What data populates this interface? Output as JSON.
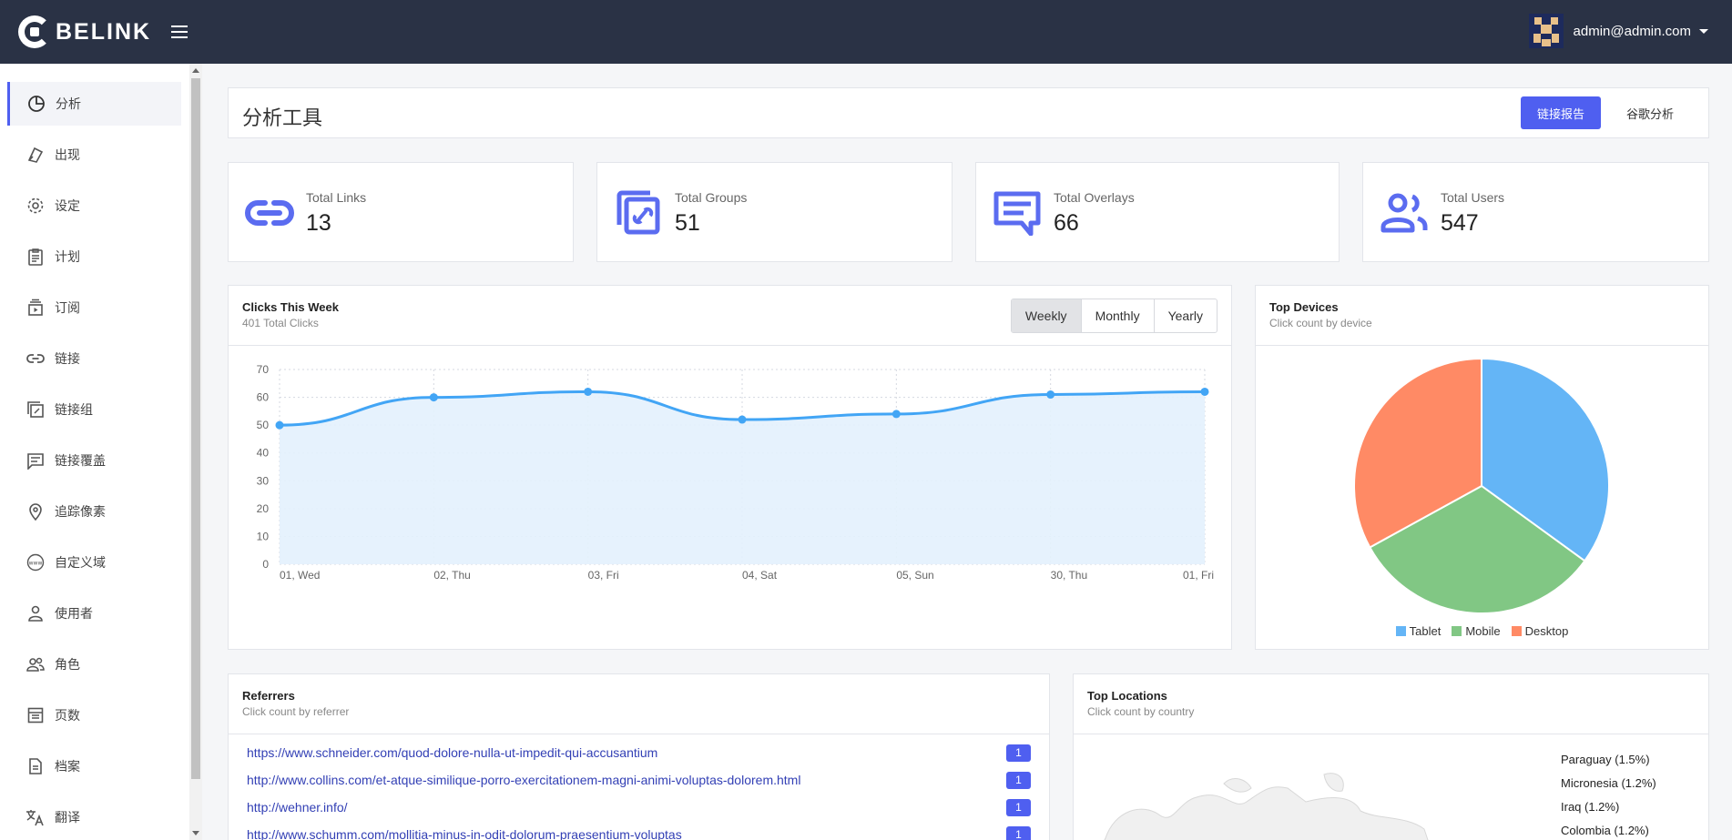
{
  "brand": {
    "name": "BELINK"
  },
  "user": {
    "email": "admin@admin.com"
  },
  "sidebar": {
    "items": [
      {
        "label": "分析",
        "icon": "pie-icon",
        "active": true
      },
      {
        "label": "出现",
        "icon": "appearance-icon"
      },
      {
        "label": "设定",
        "icon": "gear-icon"
      },
      {
        "label": "计划",
        "icon": "clipboard-icon"
      },
      {
        "label": "订阅",
        "icon": "subscription-icon"
      },
      {
        "label": "链接",
        "icon": "link-icon"
      },
      {
        "label": "链接组",
        "icon": "link-group-icon"
      },
      {
        "label": "链接覆盖",
        "icon": "overlay-icon"
      },
      {
        "label": "追踪像素",
        "icon": "location-pin-icon"
      },
      {
        "label": "自定义域",
        "icon": "www-icon"
      },
      {
        "label": "使用者",
        "icon": "user-icon"
      },
      {
        "label": "角色",
        "icon": "users-icon"
      },
      {
        "label": "页数",
        "icon": "pages-icon"
      },
      {
        "label": "档案",
        "icon": "document-icon"
      },
      {
        "label": "翻译",
        "icon": "translate-icon"
      }
    ]
  },
  "header": {
    "title": "分析工具",
    "primary_button": "链接报告",
    "secondary_button": "谷歌分析"
  },
  "stats": [
    {
      "label": "Total Links",
      "value": "13",
      "icon": "link-icon"
    },
    {
      "label": "Total Groups",
      "value": "51",
      "icon": "link-group-icon"
    },
    {
      "label": "Total Overlays",
      "value": "66",
      "icon": "overlay-icon"
    },
    {
      "label": "Total Users",
      "value": "547",
      "icon": "users-icon"
    }
  ],
  "clicks": {
    "title": "Clicks This Week",
    "subtitle": "401 Total Clicks",
    "tabs": [
      "Weekly",
      "Monthly",
      "Yearly"
    ],
    "active_tab": "Weekly"
  },
  "devices": {
    "title": "Top Devices",
    "subtitle": "Click count by device"
  },
  "referrers": {
    "title": "Referrers",
    "subtitle": "Click count by referrer",
    "rows": [
      {
        "url": "https://www.schneider.com/quod-dolore-nulla-ut-impedit-qui-accusantium",
        "count": "1"
      },
      {
        "url": "http://www.collins.com/et-atque-similique-porro-exercitationem-magni-animi-voluptas-dolorem.html",
        "count": "1"
      },
      {
        "url": "http://wehner.info/",
        "count": "1"
      },
      {
        "url": "http://www.schumm.com/mollitia-minus-in-odit-dolorum-praesentium-voluptas",
        "count": "1"
      }
    ]
  },
  "locations": {
    "title": "Top Locations",
    "subtitle": "Click count by country",
    "items": [
      "Paraguay (1.5%)",
      "Micronesia (1.2%)",
      "Iraq (1.2%)",
      "Colombia (1.2%)"
    ]
  },
  "colors": {
    "accent": "#4f5ff0",
    "topbar": "#2a3245",
    "line": "#42a5f5",
    "tablet": "#64b5f6",
    "mobile": "#81c784",
    "desktop": "#ff8a65"
  },
  "chart_data": [
    {
      "type": "area",
      "categories": [
        "01, Wed",
        "02, Thu",
        "03, Fri",
        "04, Sat",
        "05, Sun",
        "30, Thu",
        "01, Fri"
      ],
      "values": [
        50,
        60,
        62,
        52,
        54,
        61,
        62
      ],
      "ylim": [
        0,
        70
      ],
      "yticks": [
        0,
        10,
        20,
        30,
        40,
        50,
        60,
        70
      ],
      "grid": true
    },
    {
      "type": "pie",
      "labels": [
        "Tablet",
        "Mobile",
        "Desktop"
      ],
      "values": [
        35,
        32,
        33
      ],
      "legend": "bottom"
    }
  ]
}
